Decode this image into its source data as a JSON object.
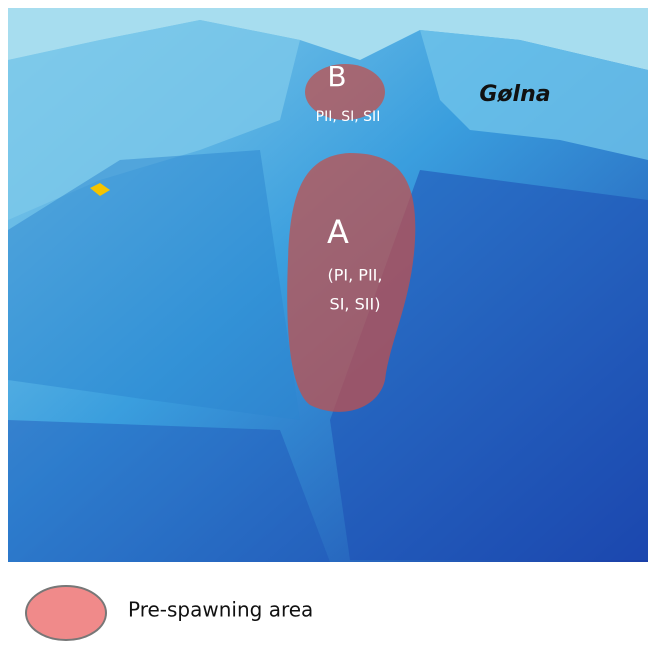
{
  "place_label": "Gølna",
  "areas": [
    {
      "label": "A",
      "sublabel_lines": [
        "(PI, PII,",
        "SI, SII)"
      ]
    },
    {
      "label": "B",
      "sublabel_lines": [
        "PII, SI, SII"
      ]
    }
  ],
  "legend": {
    "label": "Pre-spawning area"
  }
}
